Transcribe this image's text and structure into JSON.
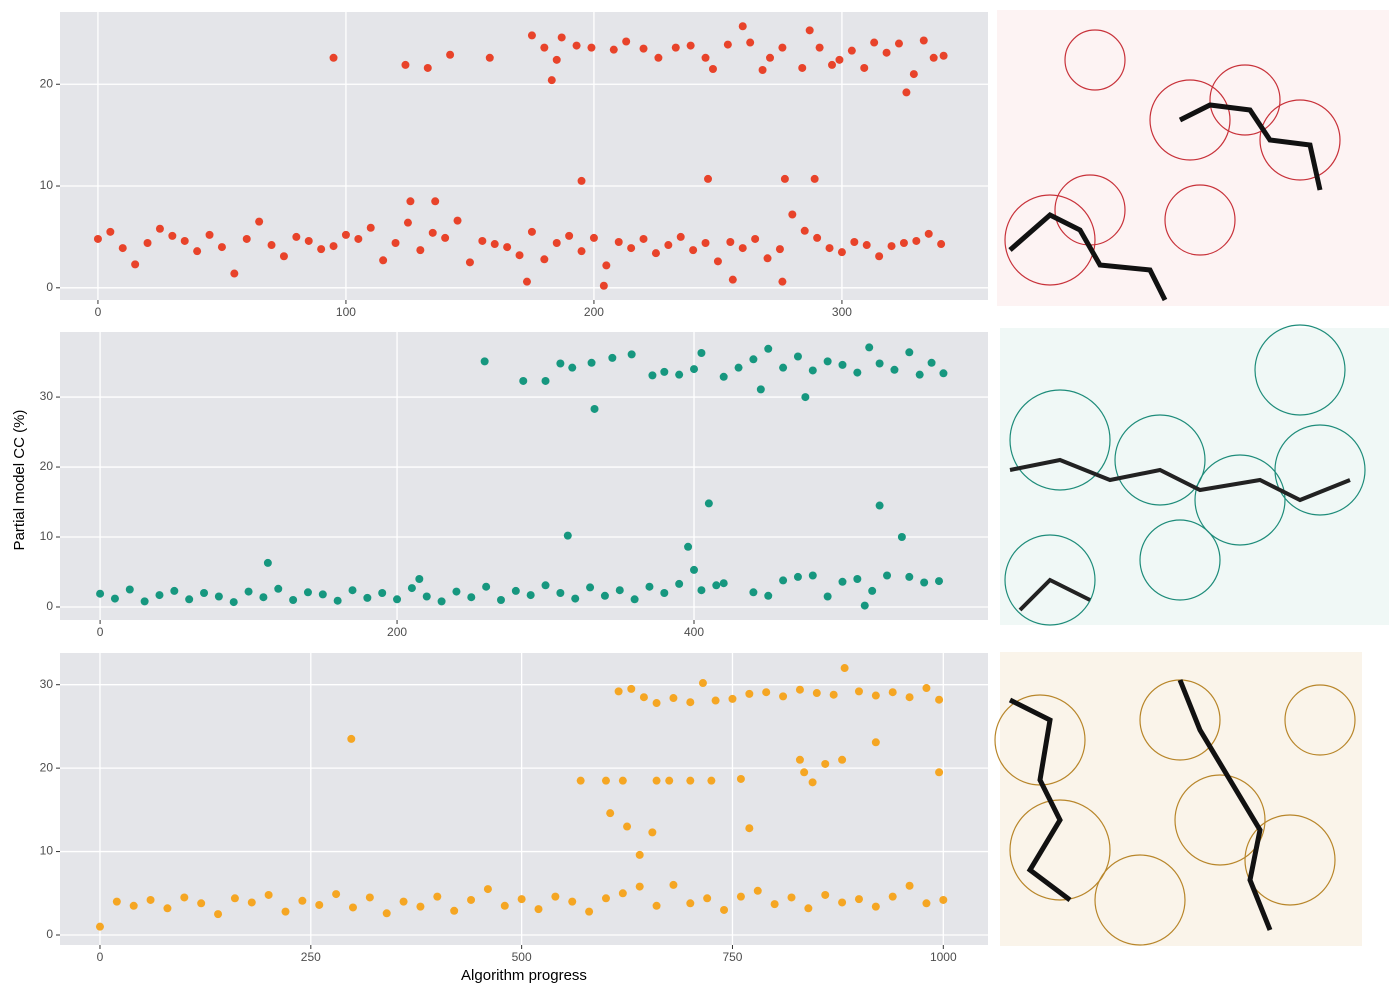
{
  "chart_data": [
    {
      "type": "scatter",
      "color": "#e8432a",
      "grid": true,
      "xlim": [
        -15.3,
        358.9
      ],
      "ylim": [
        -1.2,
        27.1
      ],
      "xticks": [
        0,
        100,
        200,
        300
      ],
      "yticks": [
        0,
        10,
        20
      ],
      "x": [
        0,
        5,
        10,
        15,
        20,
        25,
        30,
        35,
        40,
        45,
        50,
        55,
        60,
        65,
        70,
        75,
        80,
        85,
        90,
        95,
        100,
        105,
        110,
        115,
        120,
        125,
        130,
        135,
        140,
        145,
        150,
        155,
        160,
        165,
        170,
        175,
        180,
        185,
        190,
        195,
        200,
        205,
        210,
        215,
        220,
        225,
        230,
        235,
        240,
        245,
        250,
        255,
        260,
        265,
        270,
        275,
        280,
        285,
        290,
        295,
        300,
        305,
        310,
        315,
        320,
        325,
        330,
        335,
        340,
        195,
        126,
        136,
        246,
        277,
        289,
        173,
        204,
        276,
        256,
        95,
        124,
        133,
        142,
        158,
        175,
        180,
        183,
        185,
        187,
        193,
        199,
        208,
        213,
        220,
        226,
        233,
        239,
        245,
        248,
        254,
        260,
        263,
        268,
        271,
        276,
        284,
        287,
        291,
        296,
        299,
        304,
        309,
        313,
        318,
        323,
        326,
        329,
        333,
        337,
        341
      ],
      "values": [
        4.8,
        5.5,
        3.9,
        2.3,
        4.4,
        5.8,
        5.1,
        4.6,
        3.6,
        5.2,
        4.0,
        1.4,
        4.8,
        6.5,
        4.2,
        3.1,
        5.0,
        4.6,
        3.8,
        4.1,
        5.2,
        4.8,
        5.9,
        2.7,
        4.4,
        6.4,
        3.7,
        5.4,
        4.9,
        6.6,
        2.5,
        4.6,
        4.3,
        4.0,
        3.2,
        5.5,
        2.8,
        4.4,
        5.1,
        3.6,
        4.9,
        2.2,
        4.5,
        3.9,
        4.8,
        3.4,
        4.2,
        5.0,
        3.7,
        4.4,
        2.6,
        4.5,
        3.9,
        4.8,
        2.9,
        3.8,
        7.2,
        5.6,
        4.9,
        3.9,
        3.5,
        4.5,
        4.2,
        3.1,
        4.1,
        4.4,
        4.6,
        5.3,
        4.3,
        10.5,
        8.5,
        8.5,
        10.7,
        10.7,
        10.7,
        0.6,
        0.2,
        0.6,
        0.8,
        22.6,
        21.9,
        21.6,
        22.9,
        22.6,
        24.8,
        23.6,
        20.4,
        22.4,
        24.6,
        23.8,
        23.6,
        23.4,
        24.2,
        23.5,
        22.6,
        23.6,
        23.8,
        22.6,
        21.5,
        23.9,
        25.7,
        24.1,
        21.4,
        22.6,
        23.6,
        21.6,
        25.3,
        23.6,
        21.9,
        22.4,
        23.3,
        21.6,
        24.1,
        23.1,
        24.0,
        19.2,
        21.0,
        24.3,
        22.6,
        22.8
      ]
    },
    {
      "type": "scatter",
      "color": "#16977f",
      "grid": true,
      "ylabel": "Partial model CC (%)",
      "xlim": [
        -27,
        598
      ],
      "ylim": [
        -1.86,
        39.3
      ],
      "xticks": [
        0,
        200,
        400
      ],
      "yticks": [
        0,
        10,
        20,
        30
      ],
      "x": [
        0,
        10,
        20,
        30,
        40,
        50,
        60,
        70,
        80,
        90,
        100,
        110,
        113,
        120,
        130,
        140,
        150,
        160,
        170,
        180,
        190,
        200,
        210,
        215,
        220,
        230,
        240,
        250,
        260,
        270,
        280,
        290,
        300,
        310,
        315,
        320,
        330,
        340,
        350,
        360,
        370,
        380,
        390,
        396,
        400,
        405,
        410,
        415,
        420,
        440,
        450,
        460,
        470,
        480,
        490,
        500,
        510,
        515,
        520,
        525,
        530,
        540,
        545,
        555,
        565,
        259,
        285,
        300,
        310,
        318,
        331,
        333,
        345,
        358,
        372,
        380,
        390,
        400,
        405,
        420,
        430,
        440,
        445,
        450,
        460,
        470,
        475,
        480,
        490,
        500,
        510,
        518,
        525,
        535,
        545,
        552,
        560,
        568
      ],
      "values": [
        1.9,
        1.2,
        2.5,
        0.8,
        1.7,
        2.3,
        1.1,
        2.0,
        1.5,
        0.7,
        2.2,
        1.4,
        6.3,
        2.6,
        1.0,
        2.1,
        1.8,
        0.9,
        2.4,
        1.3,
        2.0,
        1.1,
        2.7,
        4.0,
        1.5,
        0.8,
        2.2,
        1.4,
        2.9,
        1.0,
        2.3,
        1.7,
        3.1,
        2.0,
        10.2,
        1.2,
        2.8,
        1.6,
        2.4,
        1.1,
        2.9,
        2.0,
        3.3,
        8.6,
        5.3,
        2.4,
        14.8,
        3.1,
        3.4,
        2.1,
        1.6,
        3.8,
        4.3,
        4.5,
        1.5,
        3.6,
        4.0,
        0.2,
        2.3,
        14.5,
        4.5,
        10.0,
        4.3,
        3.5,
        3.7,
        35.1,
        32.3,
        32.3,
        34.8,
        34.2,
        34.9,
        28.3,
        35.6,
        36.1,
        33.1,
        33.6,
        33.2,
        34.0,
        36.3,
        32.9,
        34.2,
        35.4,
        31.1,
        36.9,
        34.2,
        35.8,
        30.0,
        33.8,
        35.1,
        34.6,
        33.5,
        37.1,
        34.8,
        33.9,
        36.4,
        33.2,
        34.9,
        33.4
      ]
    },
    {
      "type": "scatter",
      "color": "#f5a623",
      "grid": true,
      "xlabel": "Algorithm progress",
      "xlim": [
        -47.4,
        1053
      ],
      "ylim": [
        -1.2,
        33.8
      ],
      "xticks": [
        0,
        250,
        500,
        750,
        1000
      ],
      "yticks": [
        0,
        10,
        20,
        30
      ],
      "x": [
        0,
        20,
        40,
        60,
        80,
        100,
        120,
        140,
        160,
        180,
        200,
        220,
        240,
        260,
        280,
        300,
        320,
        340,
        360,
        380,
        400,
        420,
        440,
        460,
        480,
        500,
        520,
        540,
        560,
        580,
        600,
        620,
        640,
        660,
        680,
        700,
        720,
        740,
        760,
        780,
        800,
        820,
        840,
        860,
        880,
        900,
        920,
        940,
        960,
        980,
        1000,
        298,
        570,
        600,
        605,
        620,
        625,
        640,
        655,
        660,
        675,
        700,
        725,
        770,
        760,
        830,
        835,
        845,
        860,
        880,
        920,
        995,
        615,
        630,
        645,
        660,
        680,
        700,
        715,
        730,
        750,
        770,
        790,
        810,
        830,
        850,
        870,
        883,
        900,
        920,
        940,
        960,
        980,
        995
      ],
      "values": [
        1.0,
        4.0,
        3.5,
        4.2,
        3.2,
        4.5,
        3.8,
        2.5,
        4.4,
        3.9,
        4.8,
        2.8,
        4.1,
        3.6,
        4.9,
        3.3,
        4.5,
        2.6,
        4.0,
        3.4,
        4.6,
        2.9,
        4.2,
        5.5,
        3.5,
        4.3,
        3.1,
        4.6,
        4.0,
        2.8,
        4.4,
        5.0,
        5.8,
        3.5,
        6.0,
        3.8,
        4.4,
        3.0,
        4.6,
        5.3,
        3.7,
        4.5,
        3.2,
        4.8,
        3.9,
        4.3,
        3.4,
        4.6,
        5.9,
        3.8,
        4.2,
        23.5,
        18.5,
        18.5,
        14.6,
        18.5,
        13.0,
        9.6,
        12.3,
        18.5,
        18.5,
        18.5,
        18.5,
        12.8,
        18.7,
        21.0,
        19.5,
        18.3,
        20.5,
        21.0,
        23.1,
        19.5,
        29.2,
        29.5,
        28.5,
        27.8,
        28.4,
        27.9,
        30.2,
        28.1,
        28.3,
        28.9,
        29.1,
        28.6,
        29.4,
        29.0,
        28.8,
        32.0,
        29.2,
        28.7,
        29.1,
        28.5,
        29.6,
        28.2
      ]
    }
  ]
}
